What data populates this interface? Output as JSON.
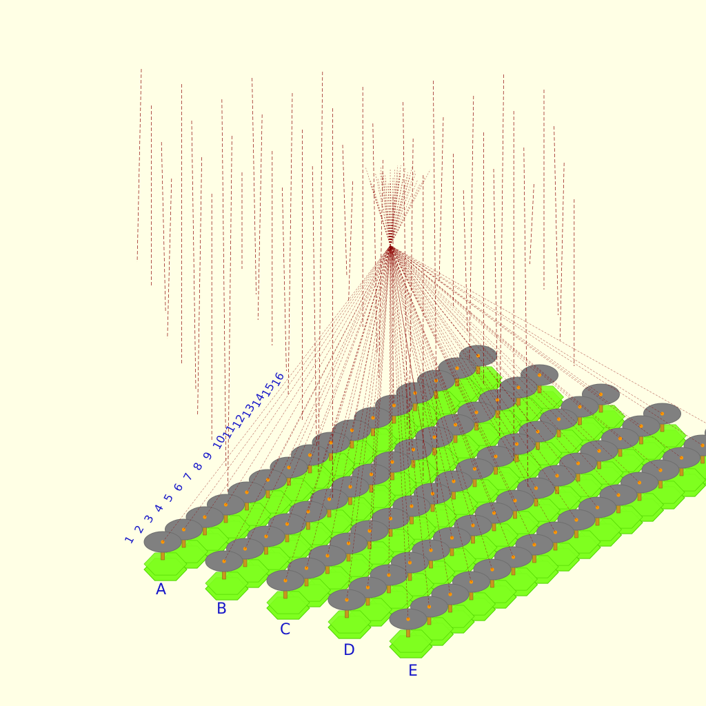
{
  "scene": {
    "background_color": "#ffffe5",
    "base_color": "#7fff1f",
    "base_edge_color": "#4fd400",
    "dish_color": "#808080",
    "dish_edge_color": "#6e6e6e",
    "post_color": "#c8961e",
    "feed_color": "#ff9900",
    "ray_color": "#8b0000",
    "label_color": "#1515c8"
  },
  "columns": [
    {
      "label": "A"
    },
    {
      "label": "B"
    },
    {
      "label": "C"
    },
    {
      "label": "D"
    },
    {
      "label": "E"
    }
  ],
  "rows": [
    {
      "label": "1"
    },
    {
      "label": "2"
    },
    {
      "label": "3"
    },
    {
      "label": "4"
    },
    {
      "label": "5"
    },
    {
      "label": "6"
    },
    {
      "label": "7"
    },
    {
      "label": "8"
    },
    {
      "label": "9"
    },
    {
      "label": "10"
    },
    {
      "label": "11"
    },
    {
      "label": "12"
    },
    {
      "label": "13"
    },
    {
      "label": "14"
    },
    {
      "label": "15"
    },
    {
      "label": "16"
    }
  ]
}
